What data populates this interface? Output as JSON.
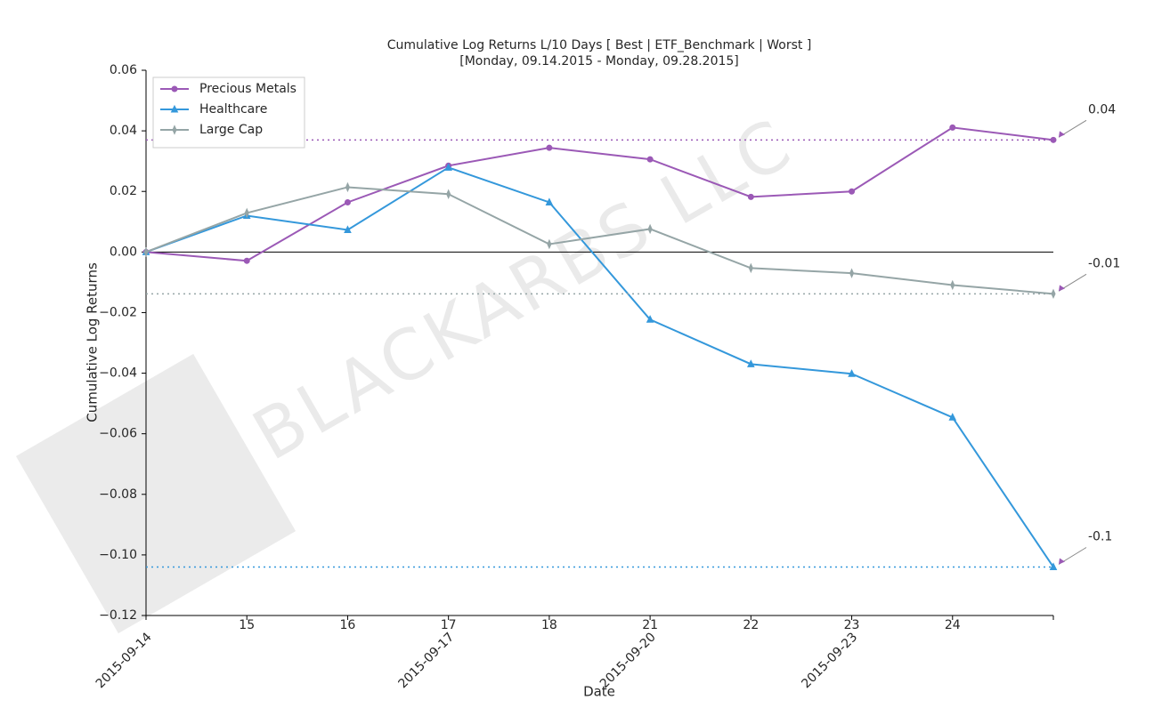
{
  "chart_data": {
    "type": "line",
    "title": "Cumulative Log Returns L/10 Days [ Best | ETF_Benchmark | Worst ]",
    "subtitle": "[Monday, 09.14.2015 - Monday, 09.28.2015]",
    "x_label": "Date",
    "y_label": "Cumulative Log Returns",
    "watermark": "BLACKARBS LLC",
    "categories": [
      null,
      "15",
      "16",
      "17",
      "18",
      "21",
      "22",
      "23",
      "24",
      null
    ],
    "major_labels": [
      "2015-09-14",
      null,
      null,
      "2015-09-17",
      null,
      "2015-09-20",
      null,
      "2015-09-23",
      null,
      null
    ],
    "ylim": [
      -0.12,
      0.06
    ],
    "yticks": [
      {
        "value": -0.12,
        "label": "−0.12"
      },
      {
        "value": -0.1,
        "label": "−0.10"
      },
      {
        "value": -0.08,
        "label": "−0.08"
      },
      {
        "value": -0.06,
        "label": "−0.06"
      },
      {
        "value": -0.04,
        "label": "−0.04"
      },
      {
        "value": -0.02,
        "label": "−0.02"
      },
      {
        "value": 0,
        "label": "0.00"
      },
      0.02,
      0.04,
      0.06
    ],
    "legend": "upper left",
    "series": [
      {
        "name": "Precious Metals",
        "color": "#9b59b6",
        "marker": "circle",
        "end_label": "0.04",
        "values": [
          0,
          -0.0029,
          0.0164,
          0.0285,
          0.0344,
          0.0306,
          0.0182,
          0.02,
          0.0411,
          0.037
        ]
      },
      {
        "name": "Healthcare",
        "color": "#3498db",
        "marker": "triangle",
        "end_label": "-0.1",
        "values": [
          0,
          0.012,
          0.0073,
          0.0279,
          0.0164,
          -0.0223,
          -0.037,
          -0.0402,
          -0.0546,
          -0.104
        ]
      },
      {
        "name": "Large Cap",
        "color": "#95a5a6",
        "marker": "diamond",
        "end_label": "-0.01",
        "values": [
          0,
          0.0129,
          0.0214,
          0.0191,
          0.0026,
          0.0076,
          -0.0053,
          -0.007,
          -0.0109,
          -0.0138
        ]
      }
    ]
  }
}
